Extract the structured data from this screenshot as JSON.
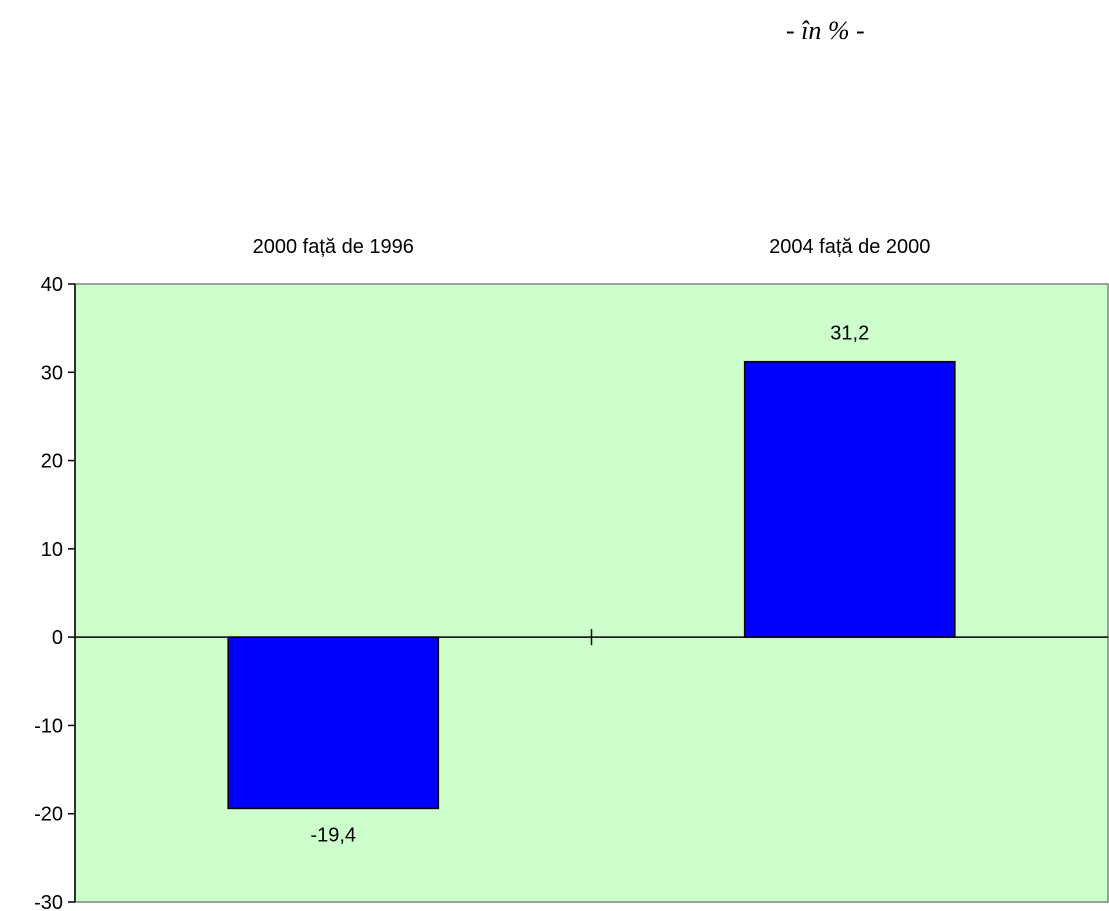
{
  "unit_note": "- în % -",
  "chart_data": {
    "type": "bar",
    "title": "",
    "xlabel": "",
    "ylabel": "",
    "categories": [
      "2000 față de 1996",
      "2004 față de 2000"
    ],
    "values": [
      -19.4,
      31.2
    ],
    "data_labels": [
      "-19,4",
      "31,2"
    ],
    "ylim": [
      -30,
      40
    ],
    "yticks": [
      40,
      30,
      20,
      10,
      0,
      -10,
      -20,
      -30
    ],
    "ytick_labels": [
      "40",
      "30",
      "20",
      "10",
      "0",
      "-10",
      "-20",
      "-30"
    ],
    "category_labels_position": "top",
    "grid": false,
    "legend": "none",
    "colors": {
      "plot_background": "#ccffcc",
      "bar_fill": "#0000ff",
      "bar_stroke": "#000000"
    }
  }
}
